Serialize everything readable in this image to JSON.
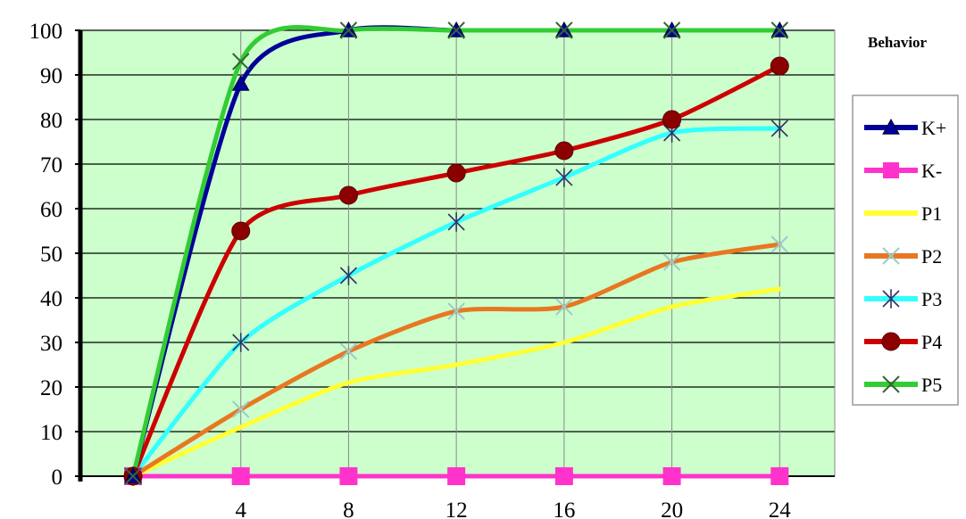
{
  "chart_data": {
    "type": "line",
    "x": [
      0,
      4,
      8,
      12,
      16,
      20,
      24
    ],
    "x_tick_labels": [
      "4",
      "8",
      "12",
      "16",
      "20",
      "24"
    ],
    "y_tick_labels": [
      "0",
      "10",
      "20",
      "30",
      "40",
      "50",
      "60",
      "70",
      "80",
      "90",
      "100"
    ],
    "ylim": [
      0,
      100
    ],
    "grid": true,
    "plot_background": "#ccffcc",
    "legend_title": "Behavior",
    "legend_position": "right",
    "series": [
      {
        "name": "K+",
        "values": [
          0,
          88,
          100,
          100,
          100,
          100,
          100
        ],
        "color": "#000099",
        "marker": "triangle"
      },
      {
        "name": "K-",
        "values": [
          0,
          0,
          0,
          0,
          0,
          0,
          0
        ],
        "color": "#ff33cc",
        "marker": "square"
      },
      {
        "name": "P1",
        "values": [
          0,
          11,
          21,
          25,
          30,
          38,
          42
        ],
        "color": "#ffff33",
        "marker": "none"
      },
      {
        "name": "P2",
        "values": [
          0,
          15,
          28,
          37,
          38,
          48,
          52
        ],
        "color": "#e87722",
        "marker": "x"
      },
      {
        "name": "P3",
        "values": [
          0,
          30,
          45,
          57,
          67,
          77,
          78
        ],
        "color": "#33ffff",
        "marker": "star"
      },
      {
        "name": "P4",
        "values": [
          0,
          55,
          63,
          68,
          73,
          80,
          92
        ],
        "color": "#cc0000",
        "marker": "circle"
      },
      {
        "name": "P5",
        "values": [
          0,
          93,
          100,
          100,
          100,
          100,
          100
        ],
        "color": "#33cc33",
        "marker": "x"
      }
    ]
  }
}
